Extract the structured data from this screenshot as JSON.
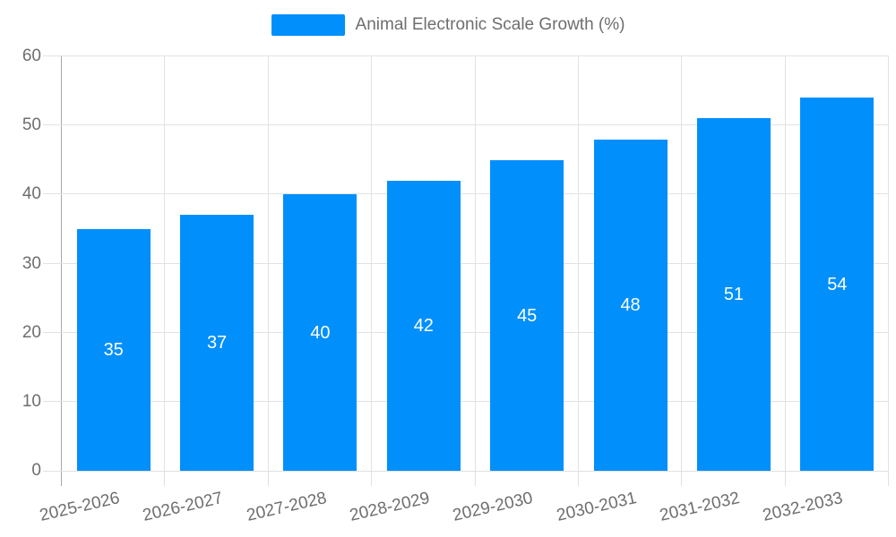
{
  "chart_data": {
    "type": "bar",
    "title": "",
    "xlabel": "",
    "ylabel": "",
    "categories": [
      "2025-2026",
      "2026-2027",
      "2027-2028",
      "2028-2029",
      "2029-2030",
      "2030-2031",
      "2031-2032",
      "2032-2033"
    ],
    "series": [
      {
        "name": "Animal Electronic Scale Growth (%)",
        "values": [
          35,
          37,
          40,
          42,
          45,
          48,
          51,
          54
        ]
      }
    ],
    "data_labels_shown": true,
    "ylim": [
      0,
      60
    ],
    "yticks": [
      0,
      10,
      20,
      30,
      40,
      50,
      60
    ],
    "grid": true,
    "legend_position": "top-center",
    "x_label_rotation_deg": -13,
    "colors": {
      "bar": "#008FFB",
      "data_label": "#FFFFFF",
      "axis_text": "#6E6E6E",
      "grid_line": "#E2E2E2",
      "x_axis_line": "#E0E0E0",
      "y_axis_line": "#A8A8A8"
    }
  }
}
